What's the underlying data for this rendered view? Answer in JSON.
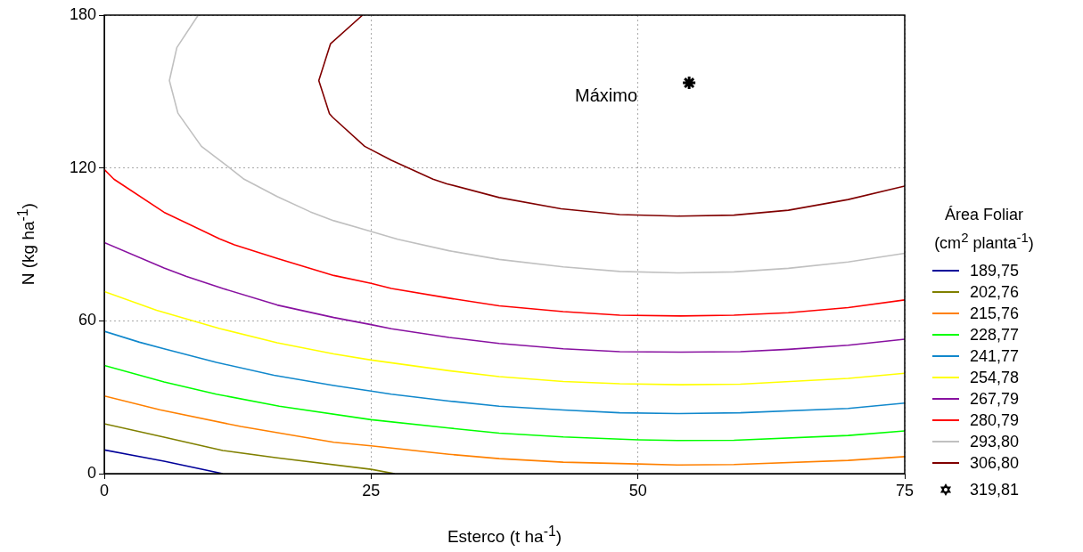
{
  "chart_data": {
    "type": "line",
    "xlabel": "Esterco (t ha$^{-1}$)",
    "ylabel": "N (kg ha$^{-1}$)",
    "legend_title": "Área Foliar (cm$^{2}$ planta$^{-1}$)",
    "xlim": [
      0,
      75
    ],
    "ylim": [
      0,
      180
    ],
    "xticks": [
      0,
      25,
      50,
      75
    ],
    "yticks": [
      0,
      60,
      120,
      180
    ],
    "grid": true,
    "legend": "right",
    "marker": "none",
    "line_style": "solid",
    "annotations": [
      "Máximo"
    ],
    "series": [
      {
        "name": "189,75",
        "color": "#000099",
        "x": [
          0,
          5.6,
          11.1
        ],
        "values": [
          9.3,
          4.9,
          0
        ]
      },
      {
        "name": "202,76",
        "color": "#808000",
        "x": [
          0,
          5.6,
          11.1,
          16.2,
          25,
          27.2
        ],
        "values": [
          19.6,
          14.3,
          9.1,
          6.2,
          1.7,
          0
        ]
      },
      {
        "name": "215,76",
        "color": "#ff8000",
        "x": [
          0,
          5.2,
          12.8,
          21.5,
          25,
          32.3,
          37,
          43,
          50,
          53.7,
          59,
          69.7,
          75
        ],
        "values": [
          30.5,
          25.1,
          18.5,
          12.3,
          10.9,
          7.6,
          5.9,
          4.5,
          3.8,
          3.4,
          3.6,
          5.2,
          6.7
        ]
      },
      {
        "name": "228,77",
        "color": "#00ff00",
        "x": [
          0,
          5.6,
          10.5,
          16.4,
          25,
          32.3,
          37,
          43,
          50,
          53.7,
          59,
          69.7,
          75
        ],
        "values": [
          42.5,
          36,
          31.2,
          26.5,
          21.2,
          17.9,
          15.9,
          14.4,
          13.3,
          13,
          13.1,
          15,
          16.8
        ]
      },
      {
        "name": "241,77",
        "color": "#1188cc",
        "x": [
          0,
          3.3,
          5.6,
          10.5,
          15.9,
          21.5,
          25,
          26.9,
          32.3,
          37,
          43,
          48.3,
          53.7,
          59.6,
          69.7,
          75
        ],
        "values": [
          55.9,
          51.6,
          49,
          43.7,
          38.6,
          34.6,
          32.4,
          31.2,
          28.5,
          26.5,
          25,
          23.9,
          23.6,
          23.9,
          25.6,
          27.7
        ]
      },
      {
        "name": "254,78",
        "color": "#ffff00",
        "x": [
          0,
          4.9,
          10.8,
          16.2,
          21.5,
          25,
          32.3,
          37,
          43,
          48.3,
          54,
          59.6,
          69.7,
          75
        ],
        "values": [
          71.5,
          64.1,
          57,
          51.4,
          47,
          44.6,
          40.4,
          38.1,
          36.2,
          35.3,
          34.9,
          35.1,
          37.4,
          39.4
        ]
      },
      {
        "name": "267,79",
        "color": "#8811a0",
        "x": [
          0,
          5.6,
          7.7,
          11.1,
          16.2,
          21.5,
          25,
          26.9,
          32.3,
          37,
          43,
          48.3,
          54,
          59.6,
          64.1,
          69.7,
          75
        ],
        "values": [
          90.7,
          80.7,
          77.4,
          72.7,
          66.2,
          61.3,
          58.5,
          56.9,
          53.5,
          51.1,
          49,
          47.9,
          47.7,
          47.9,
          48.8,
          50.4,
          52.8
        ]
      },
      {
        "name": "280,79",
        "color": "#ff0000",
        "x": [
          0,
          0.9,
          5.6,
          10.8,
          12.2,
          16.2,
          21.5,
          25,
          26.9,
          32.3,
          37,
          43,
          48.3,
          54,
          59,
          64.1,
          69.7,
          75
        ],
        "values": [
          119.4,
          115.6,
          102.6,
          92.2,
          89.8,
          84.5,
          77.8,
          74.7,
          72.7,
          68.9,
          65.9,
          63.6,
          62.2,
          61.9,
          62.2,
          63.2,
          65.2,
          68.2
        ]
      },
      {
        "name": "293,80",
        "color": "#c0c0c0",
        "x": [
          8.8,
          6.8,
          6.1,
          6.9,
          9.1,
          11.7,
          13.1,
          16.2,
          19.3,
          21.5,
          25,
          27.5,
          32.3,
          37,
          43,
          48.3,
          53.7,
          59,
          64.1,
          69.7,
          75
        ],
        "values": [
          180,
          167.3,
          154.3,
          141.5,
          128.5,
          120.2,
          115.6,
          108.8,
          102.8,
          99.3,
          95.1,
          92,
          87.5,
          84.1,
          81.2,
          79.4,
          78.8,
          79.2,
          80.6,
          83.1,
          86.5
        ]
      },
      {
        "name": "306,80",
        "color": "#800000",
        "x": [
          24.2,
          21.2,
          20.1,
          21.1,
          21.4,
          24.4,
          26.9,
          30.8,
          32.1,
          37,
          42.8,
          48.3,
          53.7,
          59,
          64.1,
          69.7,
          75
        ],
        "values": [
          180,
          168.8,
          154.3,
          141.3,
          139.9,
          128.5,
          123,
          115.6,
          113.8,
          108.4,
          104,
          101.7,
          101.1,
          101.5,
          103.4,
          107.6,
          112.9
        ]
      },
      {
        "name": "319,81",
        "type": "scatter",
        "marker": "cross",
        "color": "#000000",
        "x": [
          54.8
        ],
        "values": [
          153.4
        ]
      }
    ]
  }
}
